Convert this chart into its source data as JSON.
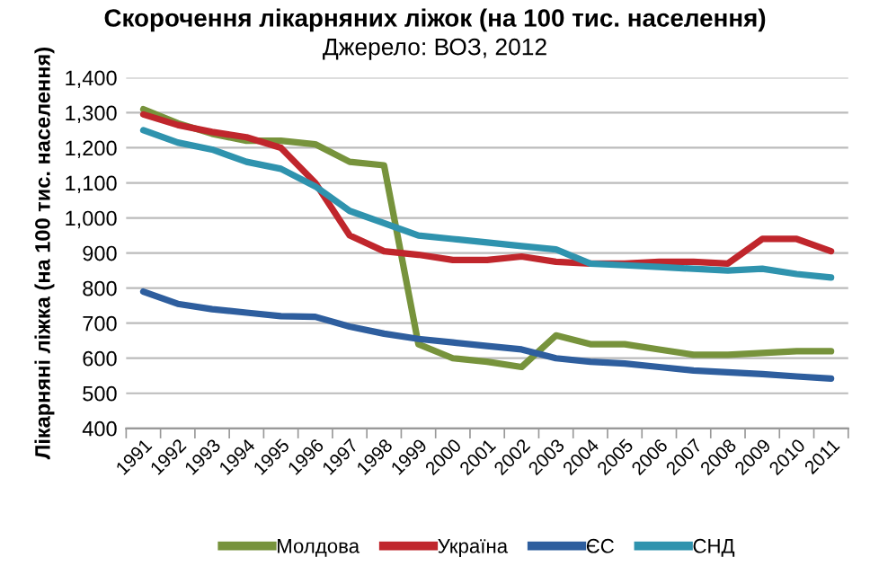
{
  "chart_data": {
    "type": "line",
    "title": "Скорочення лікарняних ліжок (на 100 тис. населення)",
    "subtitle": "Джерело: ВОЗ, 2012",
    "ylabel": "Лікарняні ліжка (на 100 тис. населення)",
    "categories": [
      "1991",
      "1992",
      "1993",
      "1994",
      "1995",
      "1996",
      "1997",
      "1998",
      "1999",
      "2000",
      "2001",
      "2002",
      "2003",
      "2004",
      "2005",
      "2006",
      "2007",
      "2008",
      "2009",
      "2010",
      "2011"
    ],
    "series": [
      {
        "name": "Молдова",
        "color": "#77933c",
        "values": [
          1310,
          1270,
          1240,
          1220,
          1220,
          1210,
          1160,
          1150,
          640,
          600,
          590,
          575,
          665,
          640,
          640,
          625,
          610,
          610,
          615,
          620,
          620
        ]
      },
      {
        "name": "Україна",
        "color": "#c0262c",
        "values": [
          1295,
          1265,
          1245,
          1230,
          1200,
          1100,
          950,
          905,
          895,
          880,
          880,
          890,
          875,
          870,
          870,
          875,
          875,
          870,
          940,
          940,
          905
        ]
      },
      {
        "name": "ЄС",
        "color": "#2e5e9e",
        "values": [
          790,
          755,
          740,
          730,
          720,
          718,
          690,
          670,
          655,
          645,
          635,
          625,
          600,
          590,
          585,
          575,
          565,
          560,
          555,
          548,
          542
        ]
      },
      {
        "name": "СНД",
        "color": "#2f93ae",
        "values": [
          1250,
          1215,
          1195,
          1160,
          1140,
          1090,
          1020,
          985,
          950,
          940,
          930,
          920,
          910,
          870,
          865,
          860,
          855,
          850,
          855,
          840,
          830
        ]
      }
    ],
    "ylim": [
      400,
      1400
    ],
    "yticks": [
      {
        "value": 400,
        "label": "400"
      },
      {
        "value": 500,
        "label": "500"
      },
      {
        "value": 600,
        "label": "600"
      },
      {
        "value": 700,
        "label": "700"
      },
      {
        "value": 800,
        "label": "800"
      },
      {
        "value": 900,
        "label": "900"
      },
      {
        "value": 1000,
        "label": "1,000"
      },
      {
        "value": 1100,
        "label": "1,100"
      },
      {
        "value": 1200,
        "label": "1,200"
      },
      {
        "value": 1300,
        "label": "1,300"
      },
      {
        "value": 1400,
        "label": "1,400"
      }
    ],
    "grid": "y",
    "legend": "bottom",
    "marker": "none",
    "line_style": "solid"
  }
}
